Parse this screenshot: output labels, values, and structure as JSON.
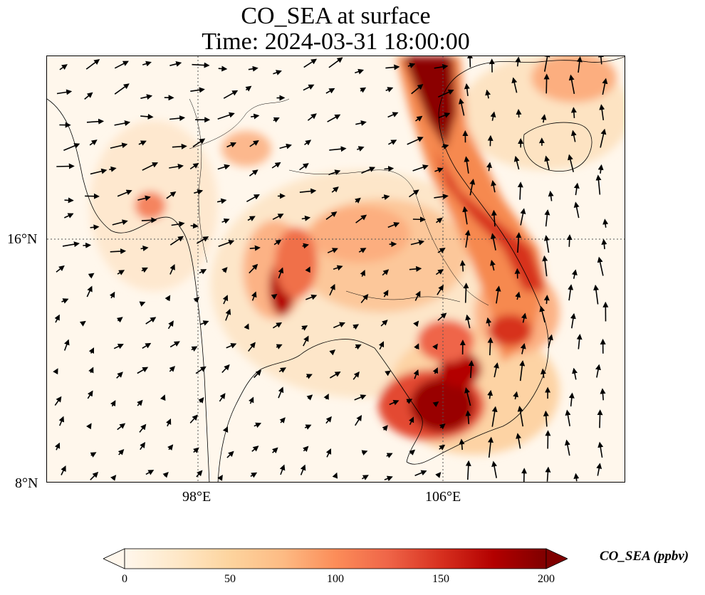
{
  "title": {
    "line1": "CO_SEA at surface",
    "line2": "Time: 2024-03-31 18:00:00"
  },
  "axes": {
    "lat_labels": [
      "16°N",
      "8°N"
    ],
    "lon_labels": [
      "98°E",
      "106°E"
    ]
  },
  "colorbar": {
    "label": "CO_SEA (ppbv)",
    "ticks": [
      "0",
      "50",
      "100",
      "150",
      "200"
    ],
    "colormap": "OrRd",
    "range": [
      0,
      200
    ],
    "extend": "both"
  },
  "colors": {
    "low": "#fff7ec",
    "mid": "#fdbb84",
    "high": "#7f0000",
    "gridline": "#555555",
    "coastline": "#000000"
  }
}
